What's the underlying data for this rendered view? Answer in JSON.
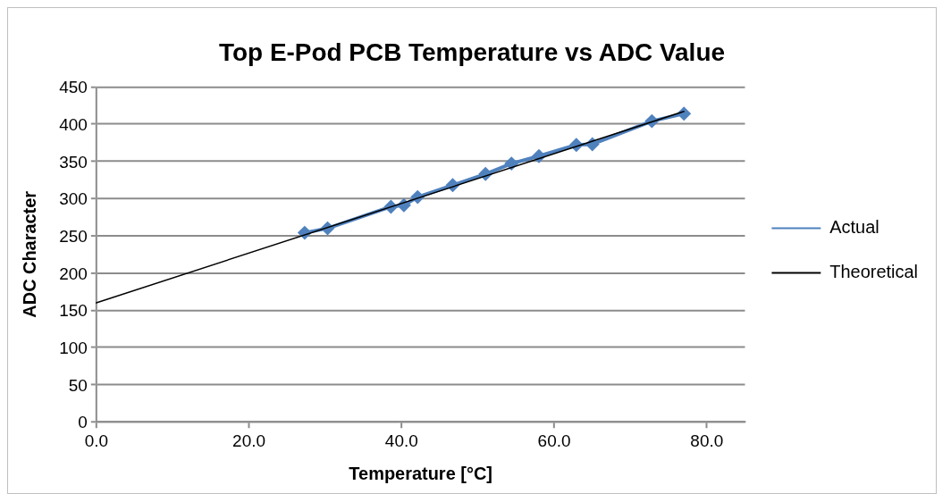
{
  "chart_data": {
    "type": "line",
    "title": "Top E-Pod PCB Temperature vs ADC Value",
    "xlabel": "Temperature [°C]",
    "ylabel": "ADC Character",
    "xlim": [
      0,
      85
    ],
    "xticks": [
      {
        "value": 0,
        "label": "0.0"
      },
      {
        "value": 20,
        "label": "20.0"
      },
      {
        "value": 40,
        "label": "40.0"
      },
      {
        "value": 60,
        "label": "60.0"
      },
      {
        "value": 80,
        "label": "80.0"
      }
    ],
    "ylim": [
      0,
      450
    ],
    "yticks": [
      0,
      50,
      100,
      150,
      200,
      250,
      300,
      350,
      400,
      450
    ],
    "grid": "y",
    "legend": "right",
    "series": [
      {
        "name": "Actual",
        "color": "#4f81bd",
        "marker": "diamond",
        "x": [
          27.3,
          30.3,
          38.6,
          40.3,
          42.1,
          46.7,
          51.0,
          54.4,
          58.0,
          62.9,
          65.0,
          72.8,
          77.0
        ],
        "values": [
          254,
          260,
          289,
          291,
          302,
          318,
          333,
          347,
          357,
          372,
          373,
          404,
          414
        ]
      },
      {
        "name": "Theoretical",
        "color": "#000000",
        "marker": "none",
        "x": [
          0,
          77
        ],
        "values": [
          160,
          417
        ]
      }
    ]
  }
}
